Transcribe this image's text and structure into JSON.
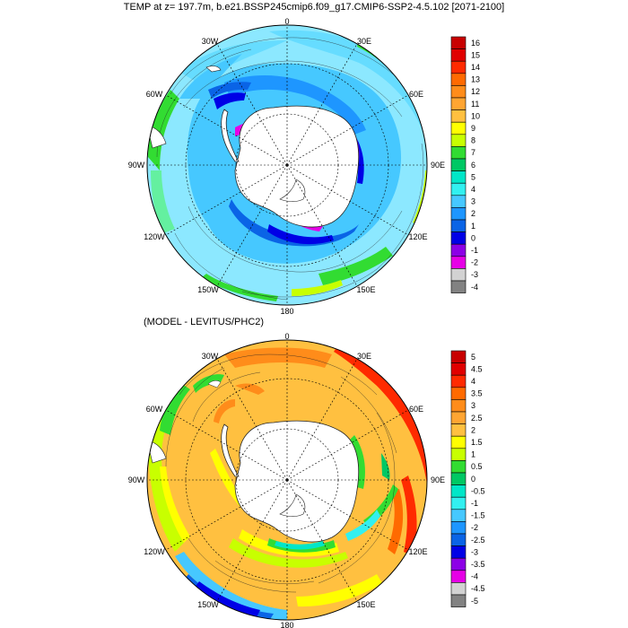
{
  "title": "TEMP at z= 197.7m, b.e21.BSSP245cmip6.f09_g17.CMIP6-SSP2-4.5.102 [2071-2100]",
  "subtitle": "(MODEL - LEVITUS/PHC2)",
  "lon_labels": {
    "top": "0",
    "top_left": "30W",
    "top_right": "30E",
    "upper_left": "60W",
    "upper_right": "60E",
    "left": "90W",
    "right": "90E",
    "lower_left": "120W",
    "lower_right": "120E",
    "bottom_left": "150W",
    "bottom_right": "150E",
    "bottom": "180"
  },
  "colorbar_top": {
    "labels": [
      "16",
      "15",
      "14",
      "13",
      "12",
      "11",
      "10",
      "9",
      "8",
      "7",
      "6",
      "5",
      "4",
      "3",
      "2",
      "1",
      "0",
      "-1",
      "-2",
      "-3",
      "-4"
    ],
    "colors": [
      "#c80000",
      "#e00000",
      "#ff2a00",
      "#ff6a00",
      "#ff8c1a",
      "#ffa532",
      "#ffc040",
      "#ffff00",
      "#c8ff00",
      "#32dc32",
      "#00c864",
      "#00e6c8",
      "#32f0f0",
      "#46c8ff",
      "#1e96ff",
      "#0a64e6",
      "#0000e6",
      "#8c00e6",
      "#e600e6",
      "#d2d2d2",
      "#828282"
    ]
  },
  "colorbar_bottom": {
    "labels": [
      "5",
      "4.5",
      "4",
      "3.5",
      "3",
      "2.5",
      "2",
      "1.5",
      "1",
      "0.5",
      "0",
      "-0.5",
      "-1",
      "-1.5",
      "-2",
      "-2.5",
      "-3",
      "-3.5",
      "-4",
      "-4.5",
      "-5"
    ],
    "colors": [
      "#c80000",
      "#e00000",
      "#ff2a00",
      "#ff6a00",
      "#ff8c1a",
      "#ffa532",
      "#ffc040",
      "#ffff00",
      "#c8ff00",
      "#32dc32",
      "#00c864",
      "#00e6c8",
      "#32f0f0",
      "#46c8ff",
      "#1e96ff",
      "#0a64e6",
      "#0000e6",
      "#8c00e6",
      "#e600e6",
      "#d2d2d2",
      "#828282"
    ]
  },
  "colors": {
    "land": "#ffffff",
    "coast": "#222222",
    "grid": "#000000"
  }
}
